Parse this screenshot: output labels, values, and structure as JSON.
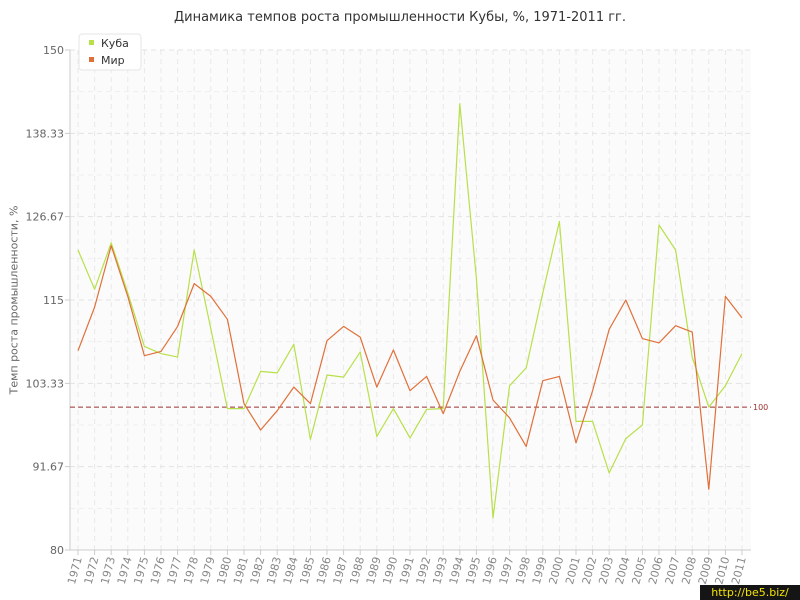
{
  "chart_data": {
    "type": "line",
    "title": "Динамика темпов роста промышленности Кубы, %, 1971-2011 гг.",
    "ylabel": "Темп роста промышленности, %",
    "xlabel": "",
    "ylim": [
      80,
      150
    ],
    "y_ticks": [
      "80",
      "91.67",
      "103.33",
      "115",
      "126.67",
      "138.33",
      "150"
    ],
    "categories": [
      "1971",
      "1972",
      "1973",
      "1974",
      "1975",
      "1976",
      "1977",
      "1978",
      "1979",
      "1980",
      "1981",
      "1982",
      "1983",
      "1984",
      "1985",
      "1986",
      "1987",
      "1988",
      "1989",
      "1990",
      "1991",
      "1992",
      "1993",
      "1994",
      "1995",
      "1996",
      "1997",
      "1998",
      "1999",
      "2000",
      "2001",
      "2002",
      "2003",
      "2004",
      "2005",
      "2006",
      "2007",
      "2008",
      "2009",
      "2010",
      "2011"
    ],
    "series": [
      {
        "name": "Куба",
        "color": "#b8e04a",
        "values": [
          122,
          116.5,
          123,
          116,
          108.5,
          107.5,
          107,
          122,
          111,
          99.8,
          99.8,
          105,
          104.8,
          108.8,
          95.5,
          104.5,
          104.2,
          107.7,
          95.9,
          99.8,
          95.7,
          99.7,
          99.8,
          142.5,
          118,
          84.5,
          103,
          105.5,
          116,
          126,
          98,
          98,
          90.8,
          95.6,
          97.5,
          125.5,
          122,
          107,
          100,
          103,
          107.5
        ]
      },
      {
        "name": "Мир",
        "color": "#e0703a",
        "values": [
          107.9,
          114,
          122.6,
          115.5,
          107.2,
          107.8,
          111.3,
          117.3,
          115.5,
          112.3,
          100.5,
          96.8,
          99.5,
          102.8,
          100.5,
          109.3,
          111.3,
          109.8,
          102.8,
          108,
          102.3,
          104.3,
          99.1,
          105,
          110,
          101,
          98.5,
          94.5,
          103.7,
          104.3,
          95,
          102.3,
          110.9,
          115,
          109.6,
          109,
          111.4,
          110.5,
          88.5,
          115.5,
          112.5
        ]
      }
    ],
    "reference_line": {
      "value": 100,
      "label": "100",
      "color": "#9b3030"
    },
    "grid": true,
    "legend_position": "top-left"
  },
  "watermark": "http://be5.biz/"
}
